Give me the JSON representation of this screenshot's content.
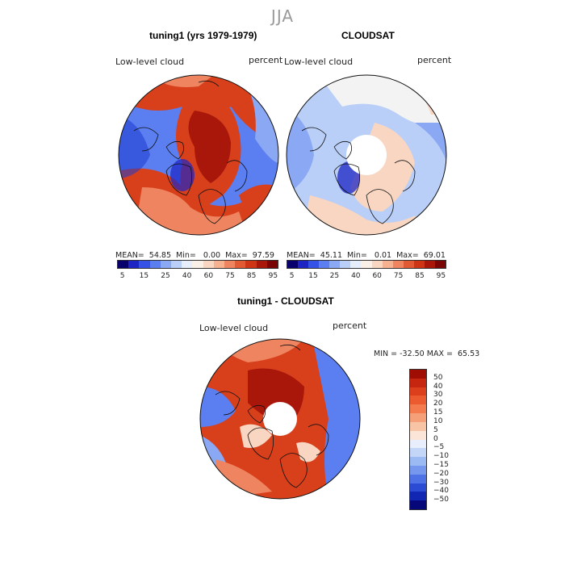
{
  "figure": {
    "season": "JJA"
  },
  "panels": {
    "left": {
      "title": "tuning1 (yrs 1979-1979)",
      "variable": "Low-level cloud",
      "units": "percent",
      "stats": "MEAN=  54.85  Min=   0.00  Max=  97.59",
      "mean": 54.85,
      "min": 0.0,
      "max": 97.59
    },
    "right": {
      "title": "CLOUDSAT",
      "variable": "Low-level cloud",
      "units": "percent",
      "stats": "MEAN=  45.11  Min=   0.01  Max=  69.01",
      "mean": 45.11,
      "min": 0.01,
      "max": 69.01
    },
    "diff": {
      "title": "tuning1 - CLOUDSAT",
      "variable": "Low-level cloud",
      "units": "percent",
      "stats": "MIN = -32.50 MAX =  65.53",
      "min": -32.5,
      "max": 65.53
    }
  },
  "colorbar_abs": {
    "tick_labels": [
      "5",
      "15",
      "25",
      "40",
      "60",
      "75",
      "85",
      "95"
    ],
    "colors": [
      "#08006b",
      "#1c24c4",
      "#3652e6",
      "#5b7ff0",
      "#8aa8f3",
      "#b9cff7",
      "#e5eefa",
      "#faf0e8",
      "#f9d6c2",
      "#f6b190",
      "#ef8560",
      "#e25a34",
      "#cd3514",
      "#a8170a",
      "#7a0505"
    ]
  },
  "colorbar_diff": {
    "tick_labels": [
      "50",
      "40",
      "30",
      "20",
      "15",
      "10",
      "5",
      "0",
      "−5",
      "−10",
      "−15",
      "−20",
      "−30",
      "−40",
      "−50"
    ],
    "colors": [
      "#a00d05",
      "#c6260f",
      "#dc3f1c",
      "#ec5a30",
      "#f37b4e",
      "#f6a07a",
      "#f8c4a6",
      "#fae5d8",
      "#e8eefb",
      "#c4d6f7",
      "#9bb9f3",
      "#7597ee",
      "#4e72e6",
      "#2c4bd5",
      "#1226b4",
      "#06087a"
    ]
  },
  "map_colors": {
    "deep_red": "#a8170a",
    "red": "#d8401c",
    "orange": "#ef8560",
    "light": "#f9d6c2",
    "white": "#f3f3f3",
    "light_blue": "#b9cff7",
    "blue": "#5b7ff0",
    "dark_blue": "#1c3ad0"
  }
}
